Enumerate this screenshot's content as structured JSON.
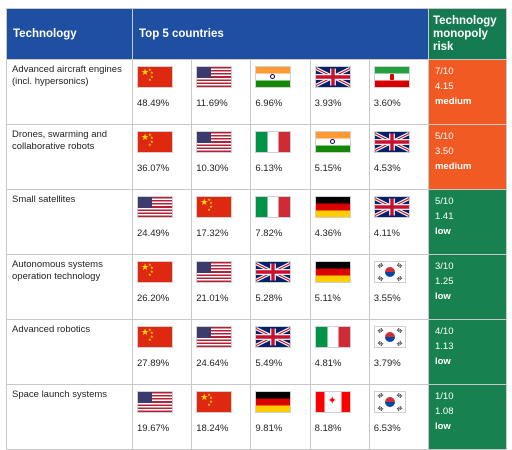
{
  "headers": {
    "technology": "Technology",
    "countries": "Top 5 countries",
    "risk": "Technology monopoly risk"
  },
  "rows": [
    {
      "tech": "Advanced aircraft engines (incl. hypersonics)",
      "countries": [
        {
          "flag": "china-flag-icon",
          "pct": "48.49%"
        },
        {
          "flag": "usa-flag-icon",
          "pct": "11.69%"
        },
        {
          "flag": "india-flag-icon",
          "pct": "6.96%"
        },
        {
          "flag": "uk-flag-icon",
          "pct": "3.93%"
        },
        {
          "flag": "iran-flag-icon",
          "pct": "3.60%"
        }
      ],
      "risk": {
        "score": "7/10",
        "value": "4.15",
        "level": "medium",
        "color": "#f15a22"
      }
    },
    {
      "tech": "Drones, swarming and collaborative robots",
      "countries": [
        {
          "flag": "china-flag-icon",
          "pct": "36.07%"
        },
        {
          "flag": "usa-flag-icon",
          "pct": "10.30%"
        },
        {
          "flag": "italy-flag-icon",
          "pct": "6.13%"
        },
        {
          "flag": "india-flag-icon",
          "pct": "5.15%"
        },
        {
          "flag": "uk-flag-icon",
          "pct": "4.53%"
        }
      ],
      "risk": {
        "score": "5/10",
        "value": "3.50",
        "level": "medium",
        "color": "#f15a22"
      }
    },
    {
      "tech": "Small satellites",
      "countries": [
        {
          "flag": "usa-flag-icon",
          "pct": "24.49%"
        },
        {
          "flag": "china-flag-icon",
          "pct": "17.32%"
        },
        {
          "flag": "italy-flag-icon",
          "pct": "7.82%"
        },
        {
          "flag": "germany-flag-icon",
          "pct": "4.36%"
        },
        {
          "flag": "uk-flag-icon",
          "pct": "4.11%"
        }
      ],
      "risk": {
        "score": "5/10",
        "value": "1.41",
        "level": "low",
        "color": "#17824f"
      }
    },
    {
      "tech": "Autonomous systems operation technology",
      "countries": [
        {
          "flag": "china-flag-icon",
          "pct": "26.20%"
        },
        {
          "flag": "usa-flag-icon",
          "pct": "21.01%"
        },
        {
          "flag": "uk-flag-icon",
          "pct": "5.28%"
        },
        {
          "flag": "germany-flag-icon",
          "pct": "5.11%"
        },
        {
          "flag": "south-korea-flag-icon",
          "pct": "3.55%"
        }
      ],
      "risk": {
        "score": "3/10",
        "value": "1.25",
        "level": "low",
        "color": "#17824f"
      }
    },
    {
      "tech": "Advanced robotics",
      "countries": [
        {
          "flag": "china-flag-icon",
          "pct": "27.89%"
        },
        {
          "flag": "usa-flag-icon",
          "pct": "24.64%"
        },
        {
          "flag": "uk-flag-icon",
          "pct": "5.49%"
        },
        {
          "flag": "italy-flag-icon",
          "pct": "4.81%"
        },
        {
          "flag": "south-korea-flag-icon",
          "pct": "3.79%"
        }
      ],
      "risk": {
        "score": "4/10",
        "value": "1.13",
        "level": "low",
        "color": "#17824f"
      }
    },
    {
      "tech": "Space launch systems",
      "countries": [
        {
          "flag": "usa-flag-icon",
          "pct": "19.67%"
        },
        {
          "flag": "china-flag-icon",
          "pct": "18.24%"
        },
        {
          "flag": "germany-flag-icon",
          "pct": "9.81%"
        },
        {
          "flag": "canada-flag-icon",
          "pct": "8.18%"
        },
        {
          "flag": "south-korea-flag-icon",
          "pct": "6.53%"
        }
      ],
      "risk": {
        "score": "1/10",
        "value": "1.08",
        "level": "low",
        "color": "#17824f"
      }
    }
  ]
}
